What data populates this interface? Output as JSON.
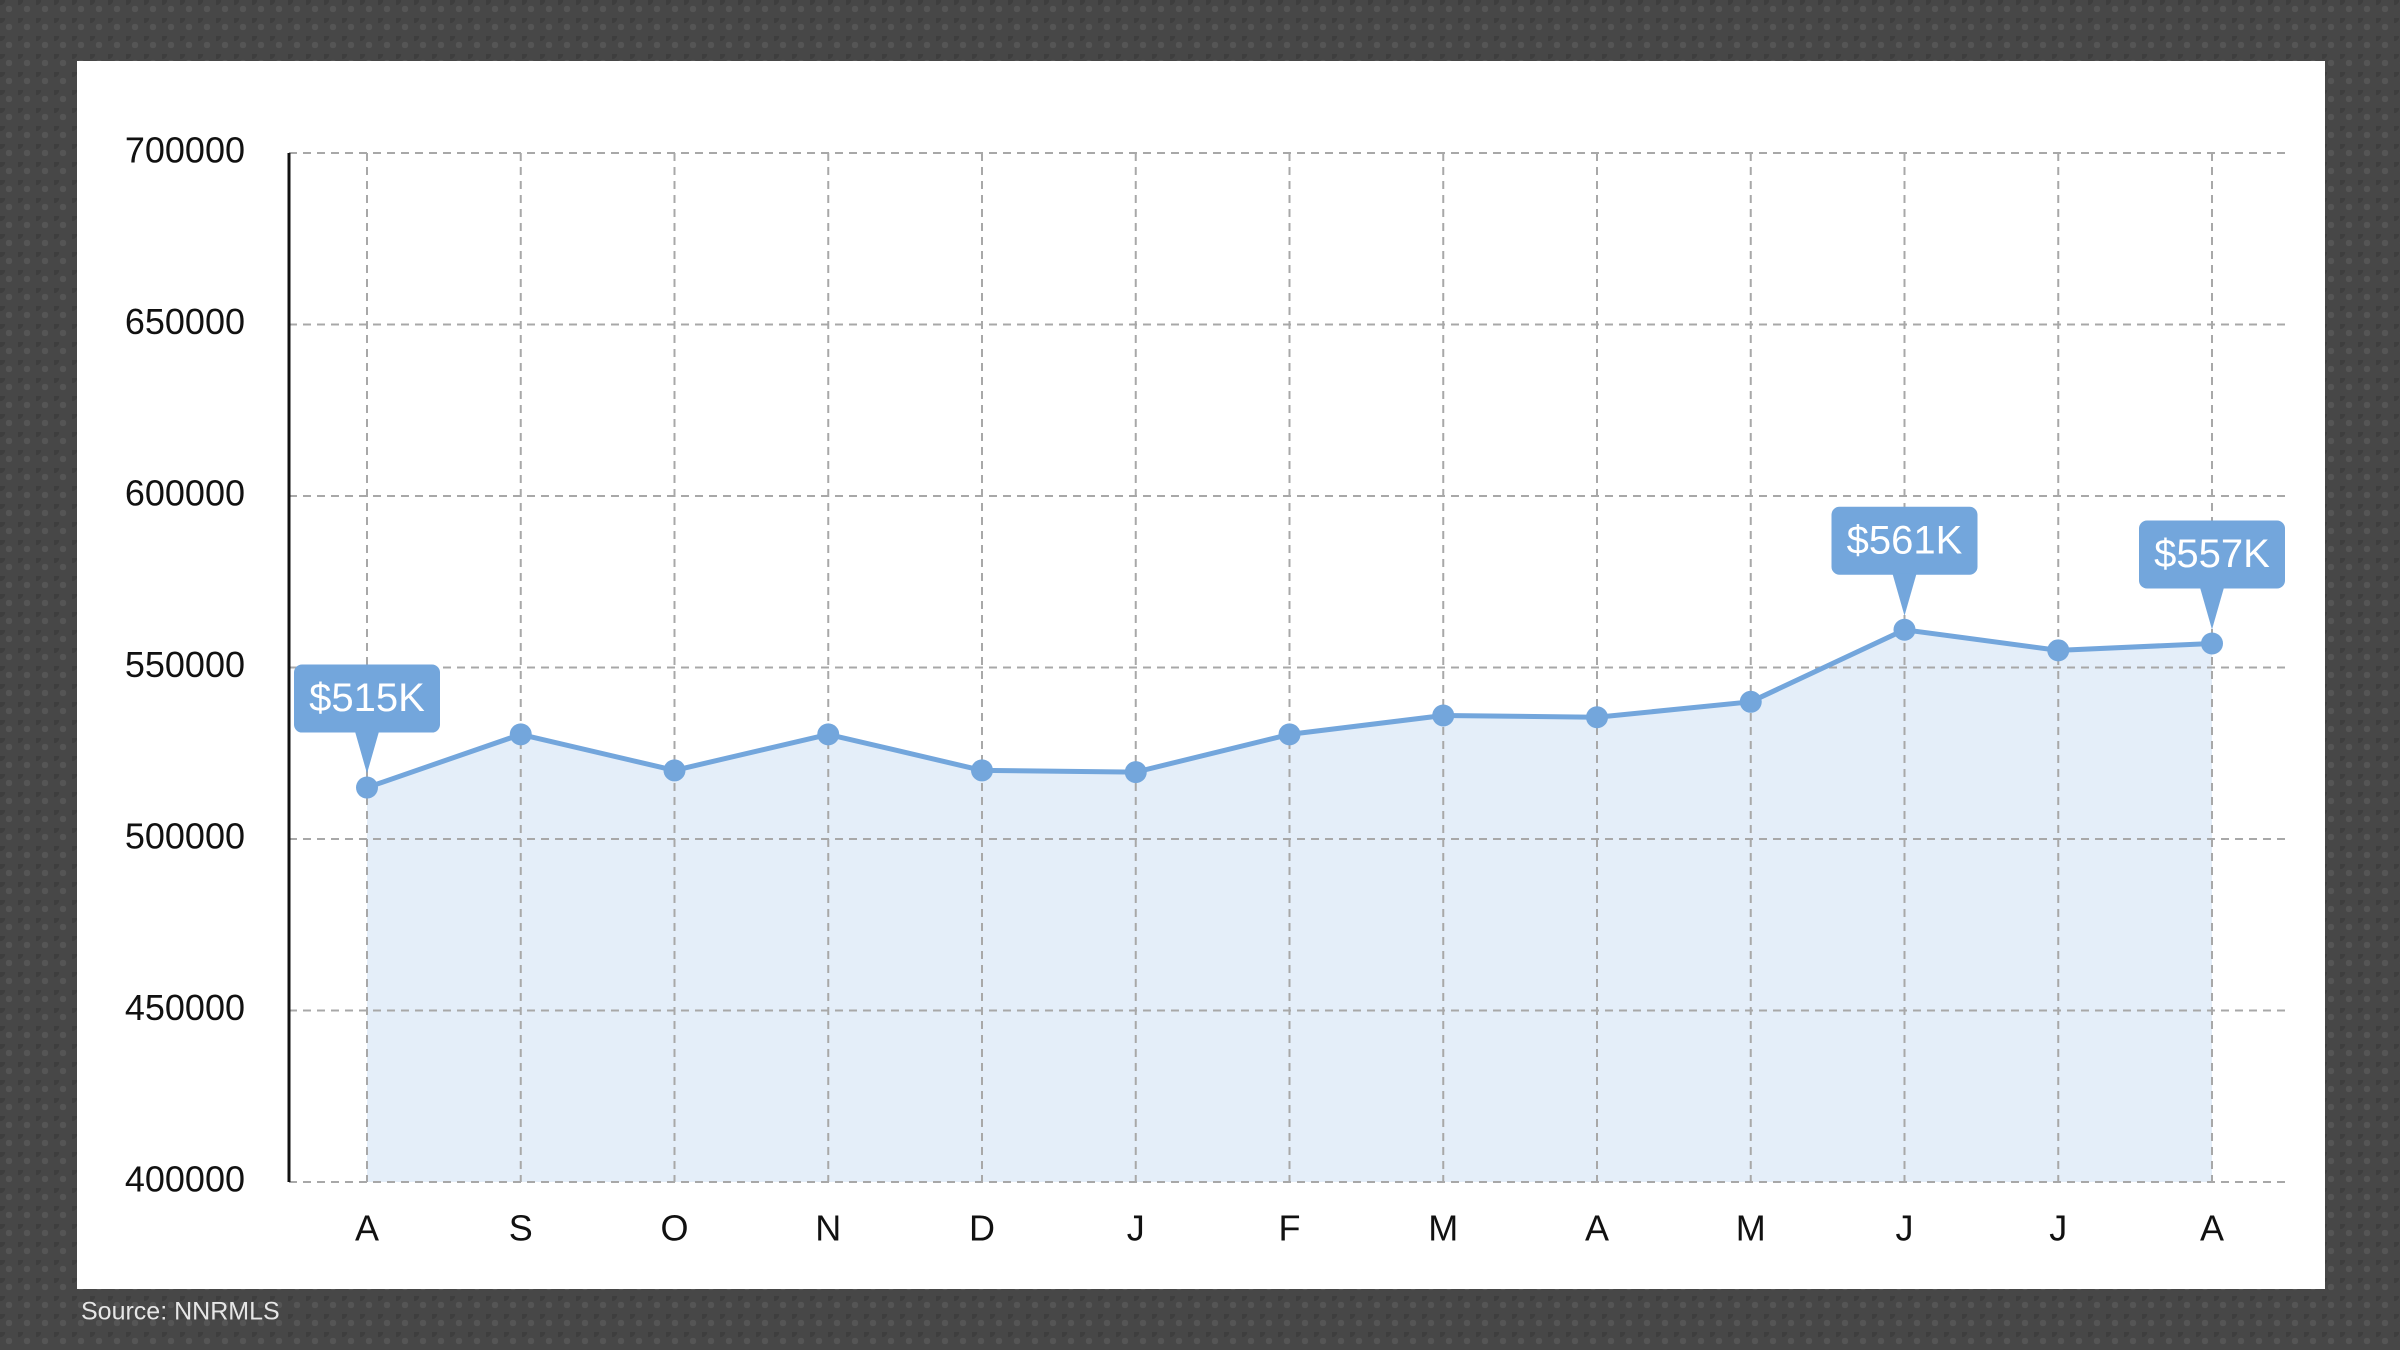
{
  "chart_data": {
    "type": "line",
    "categories": [
      "A",
      "S",
      "O",
      "N",
      "D",
      "J",
      "F",
      "M",
      "A",
      "M",
      "J",
      "J",
      "A"
    ],
    "series": [
      {
        "color": "#73a6dc",
        "area_color": "#e4eef9",
        "values": [
          515000,
          530500,
          520000,
          530500,
          520000,
          519500,
          530500,
          536000,
          535500,
          540000,
          561000,
          555000,
          557000
        ],
        "value_labels": [
          "$515K",
          null,
          null,
          null,
          null,
          null,
          null,
          null,
          null,
          null,
          "$561K",
          null,
          "$557K"
        ]
      }
    ],
    "ylim": [
      400000,
      700000
    ],
    "yticks": [
      400000,
      450000,
      500000,
      550000,
      600000,
      650000,
      700000
    ],
    "grid": true,
    "source": "Source: NNRMLS"
  }
}
